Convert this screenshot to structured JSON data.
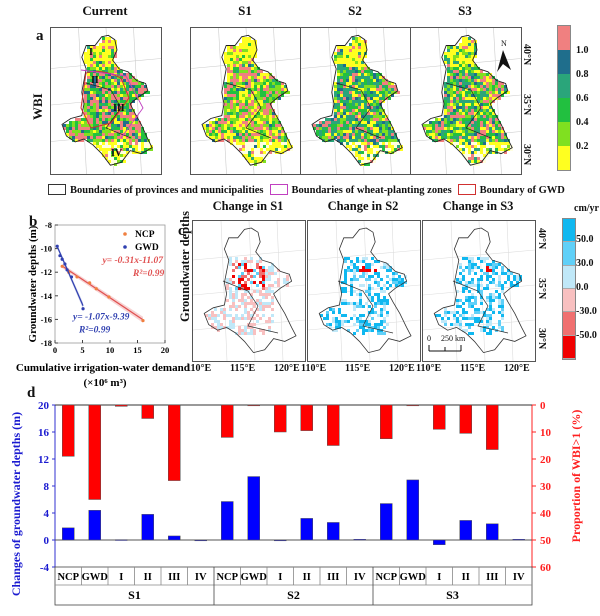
{
  "panel_a": {
    "letter": "a",
    "row_label": "WBI",
    "columns": [
      "Current",
      "S1",
      "S2",
      "S3"
    ],
    "zone_labels": [
      "I",
      "II",
      "III",
      "IV"
    ],
    "north_arrow": "N",
    "lat_labels": [
      "40°N",
      "35°N",
      "30°N"
    ],
    "colorbar": {
      "labels": [
        "1.0",
        "0.8",
        "0.6",
        "0.4",
        "0.2"
      ],
      "colors": [
        "#f08080",
        "#1f6e8c",
        "#2aa57a",
        "#22c040",
        "#80e020",
        "#ffff20"
      ]
    },
    "legend": [
      {
        "label": "Boundaries of provinces and municipalities",
        "color": "#333333"
      },
      {
        "label": "Boundaries of wheat-planting zones",
        "color": "#c040c0"
      },
      {
        "label": "Boundary of GWD",
        "color": "#d03030"
      }
    ]
  },
  "panel_c": {
    "letter": "c",
    "row_label": "Groundwater depths",
    "columns": [
      "Change in S1",
      "Change in S2",
      "Change in S3"
    ],
    "lon_labels": [
      "110°E",
      "115°E",
      "120°E"
    ],
    "lat_labels": [
      "40°N",
      "35°N",
      "30°N"
    ],
    "scale_bar": {
      "start": "0",
      "end": "250 km"
    },
    "colorbar": {
      "unit": "cm/yr",
      "labels": [
        "50.0",
        "30.0",
        "0.0",
        "-30.0",
        "-50.0"
      ],
      "colors": [
        "#10b8f0",
        "#60d0f8",
        "#c0e8f8",
        "#f8c0c0",
        "#f07070",
        "#f00000"
      ]
    }
  },
  "chart_data": [
    {
      "type": "scatter",
      "panel": "b",
      "xlabel": "Cumulative irrigation-water demands (×10⁶ m³)",
      "ylabel": "Groundwater depths (m)",
      "xlim": [
        0,
        20
      ],
      "ylim": [
        -18,
        -8
      ],
      "xticks": [
        "0",
        "5",
        "10",
        "15",
        "20"
      ],
      "yticks": [
        "-8",
        "-10",
        "-12",
        "-14",
        "-16",
        "-18"
      ],
      "legend_position": "top-right",
      "series": [
        {
          "name": "NCP",
          "color": "#f08040",
          "line_color": "#e05050",
          "x": [
            1.3,
            2.5,
            4.0,
            6.3,
            7.5,
            9.8,
            16.0
          ],
          "y": [
            -11.5,
            -12.0,
            -12.4,
            -12.9,
            -13.4,
            -14.1,
            -16.1
          ],
          "fit": {
            "slope": -0.31,
            "intercept": -11.07,
            "equation": "y= -0.31x-11.07",
            "r2": "R²=0.99"
          }
        },
        {
          "name": "GWD",
          "color": "#3040b0",
          "line_color": "#3040b0",
          "x": [
            0.4,
            0.9,
            1.3,
            1.8,
            2.2,
            3.0,
            5.1
          ],
          "y": [
            -9.8,
            -10.6,
            -10.9,
            -11.3,
            -11.8,
            -12.4,
            -15.1
          ],
          "fit": {
            "slope": -1.07,
            "intercept": -9.39,
            "equation": "y= -1.07x-9.39",
            "r2": "R²=0.99"
          }
        }
      ]
    },
    {
      "type": "bar",
      "panel": "d",
      "ylabel_left": "Changes of groundwater depths (m)",
      "ylabel_right": "Proportion of WBI>1 (%)",
      "ylim_left": [
        -4,
        20
      ],
      "yticks_left": [
        "20",
        "16",
        "12",
        "8",
        "4",
        "0",
        "-4"
      ],
      "ylim_right": [
        0,
        60
      ],
      "yticks_right": [
        "0",
        "10",
        "20",
        "30",
        "40",
        "50",
        "60"
      ],
      "groups": [
        "S1",
        "S2",
        "S3"
      ],
      "categories": [
        "NCP",
        "GWD",
        "I",
        "II",
        "III",
        "IV"
      ],
      "series": [
        {
          "name": "Changes of groundwater depths",
          "axis": "left",
          "color": "#0000ff",
          "values": [
            [
              1.8,
              4.4,
              0.05,
              3.8,
              0.6,
              0
            ],
            [
              5.7,
              9.4,
              0,
              3.2,
              2.6,
              0.1
            ],
            [
              5.4,
              8.9,
              -0.7,
              2.9,
              2.4,
              0.1
            ]
          ]
        },
        {
          "name": "Proportion of WBI>1",
          "axis": "right",
          "color": "#ff0000",
          "values": [
            [
              19,
              35,
              0.5,
              5,
              28,
              0
            ],
            [
              12,
              0.3,
              10,
              9.5,
              15,
              0
            ],
            [
              12.5,
              0.3,
              9,
              10.5,
              16.5,
              0
            ]
          ]
        }
      ]
    }
  ],
  "panel_b": {
    "letter": "b"
  },
  "panel_d": {
    "letter": "d"
  }
}
